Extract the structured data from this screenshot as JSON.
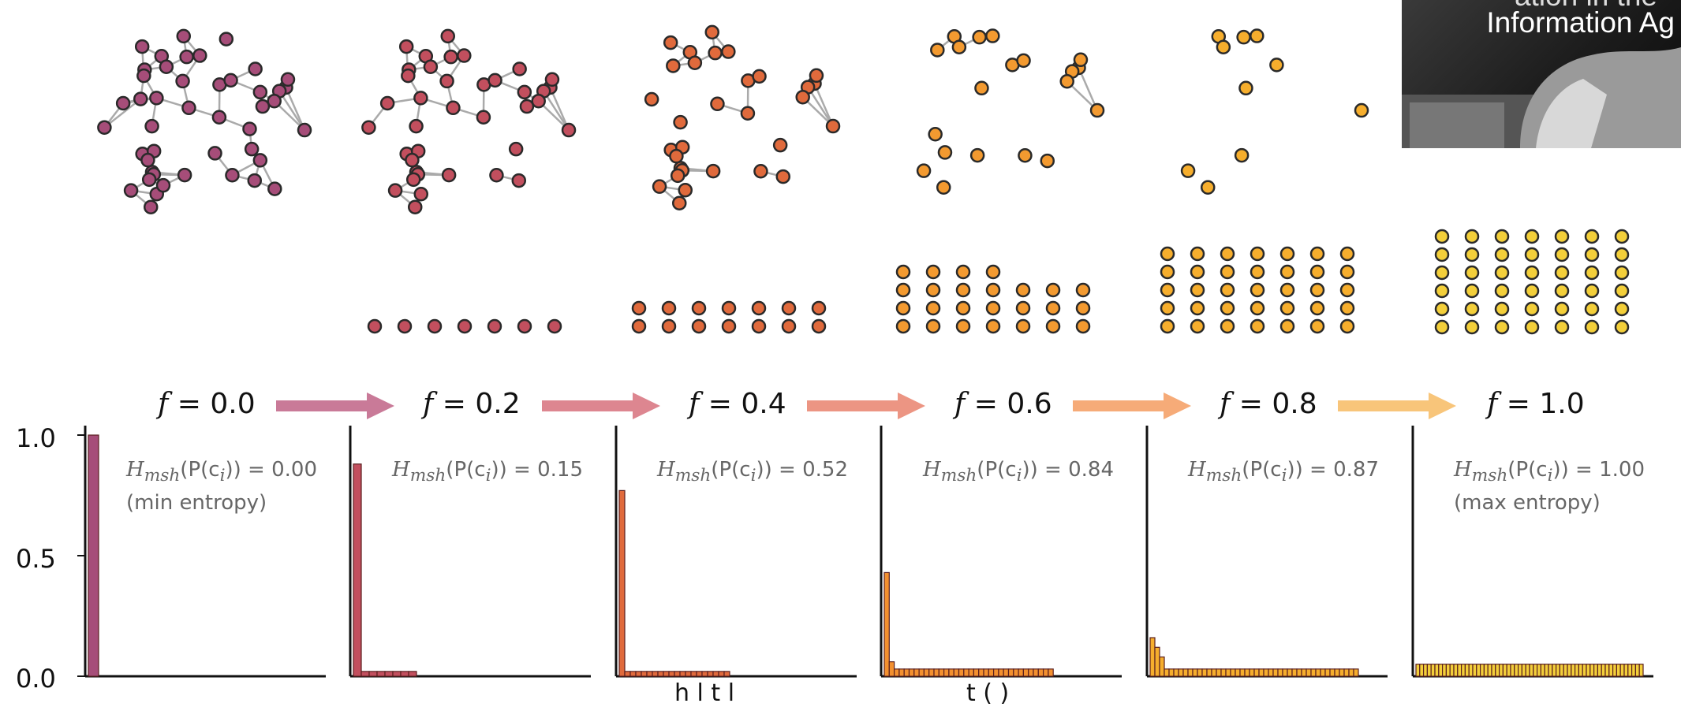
{
  "overlay": {
    "title_line2": "Information Ag",
    "title_line1_partial": "ation in the"
  },
  "axis": {
    "yticks": [
      "1.0",
      "0.5",
      "0.0"
    ],
    "xlabel_fragment_left": "h   l   t   l",
    "xlabel_fragment_right": "t   (   )"
  },
  "arrow_colors": [
    "#c97a98",
    "#dd8690",
    "#ec9583",
    "#f6ab78",
    "#f8c57a"
  ],
  "panels": [
    {
      "f_label": "0.0",
      "entropy_value": "0.00",
      "entropy_note": "(min entropy)",
      "color": "#a64d79",
      "node_color": "#a64d79"
    },
    {
      "f_label": "0.2",
      "entropy_value": "0.15",
      "entropy_note": "",
      "color": "#c24f5e",
      "node_color": "#c24f5e"
    },
    {
      "f_label": "0.4",
      "entropy_value": "0.52",
      "entropy_note": "",
      "color": "#e06a3c",
      "node_color": "#e06a3c"
    },
    {
      "f_label": "0.6",
      "entropy_value": "0.84",
      "entropy_note": "",
      "color": "#f3902f",
      "node_color": "#f39a30"
    },
    {
      "f_label": "0.8",
      "entropy_value": "0.87",
      "entropy_note": "",
      "color": "#f6ae2d",
      "node_color": "#f6ae2d"
    },
    {
      "f_label": "1.0",
      "entropy_value": "1.00",
      "entropy_note": "(max entropy)",
      "color": "#f3cf3a",
      "node_color": "#f3cf3a"
    }
  ],
  "entropy_prefix": "H",
  "entropy_sub": "msh",
  "entropy_arg": "(P(c",
  "entropy_arg_sub": "i",
  "entropy_arg_end": "))",
  "chart_data": [
    {
      "type": "bar",
      "f": 0.0,
      "ylim": [
        0,
        1.0
      ],
      "values": [
        1.0
      ]
    },
    {
      "type": "bar",
      "f": 0.2,
      "ylim": [
        0,
        1.0
      ],
      "values": [
        0.88,
        0.02,
        0.02,
        0.02,
        0.02,
        0.02,
        0.02,
        0.02
      ]
    },
    {
      "type": "bar",
      "f": 0.4,
      "ylim": [
        0,
        1.0
      ],
      "values": [
        0.77,
        0.02,
        0.02,
        0.02,
        0.02,
        0.02,
        0.02,
        0.02,
        0.02,
        0.02,
        0.02,
        0.02,
        0.02,
        0.02,
        0.02,
        0.02,
        0.02,
        0.02,
        0.02,
        0.02
      ]
    },
    {
      "type": "bar",
      "f": 0.6,
      "ylim": [
        0,
        1.0
      ],
      "values": [
        0.43,
        0.06,
        0.03,
        0.03,
        0.03,
        0.03,
        0.03,
        0.03,
        0.03,
        0.03,
        0.03,
        0.03,
        0.03,
        0.03,
        0.03,
        0.03,
        0.03,
        0.03,
        0.03,
        0.03,
        0.03,
        0.03,
        0.03,
        0.03,
        0.03,
        0.03,
        0.03,
        0.03,
        0.03,
        0.03,
        0.03,
        0.03,
        0.03,
        0.03
      ]
    },
    {
      "type": "bar",
      "f": 0.8,
      "ylim": [
        0,
        1.0
      ],
      "values": [
        0.16,
        0.12,
        0.08,
        0.03,
        0.03,
        0.03,
        0.03,
        0.03,
        0.03,
        0.03,
        0.03,
        0.03,
        0.03,
        0.03,
        0.03,
        0.03,
        0.03,
        0.03,
        0.03,
        0.03,
        0.03,
        0.03,
        0.03,
        0.03,
        0.03,
        0.03,
        0.03,
        0.03,
        0.03,
        0.03,
        0.03,
        0.03,
        0.03,
        0.03,
        0.03,
        0.03,
        0.03,
        0.03,
        0.03,
        0.03,
        0.03,
        0.03,
        0.03,
        0.03
      ]
    },
    {
      "type": "bar",
      "f": 1.0,
      "ylim": [
        0,
        1.0
      ],
      "values": [
        0.05,
        0.05,
        0.05,
        0.05,
        0.05,
        0.05,
        0.05,
        0.05,
        0.05,
        0.05,
        0.05,
        0.05,
        0.05,
        0.05,
        0.05,
        0.05,
        0.05,
        0.05,
        0.05,
        0.05,
        0.05,
        0.05,
        0.05,
        0.05,
        0.05,
        0.05,
        0.05,
        0.05,
        0.05,
        0.05,
        0.05,
        0.05,
        0.05,
        0.05,
        0.05,
        0.05,
        0.05,
        0.05,
        0.05,
        0.05,
        0.05,
        0.05,
        0.05,
        0.05,
        0.05,
        0.05,
        0.05,
        0.05,
        0.05,
        0.05,
        0.05,
        0.05,
        0.05,
        0.05,
        0.05,
        0.05,
        0.05,
        0.05,
        0.05,
        0.05
      ]
    }
  ]
}
